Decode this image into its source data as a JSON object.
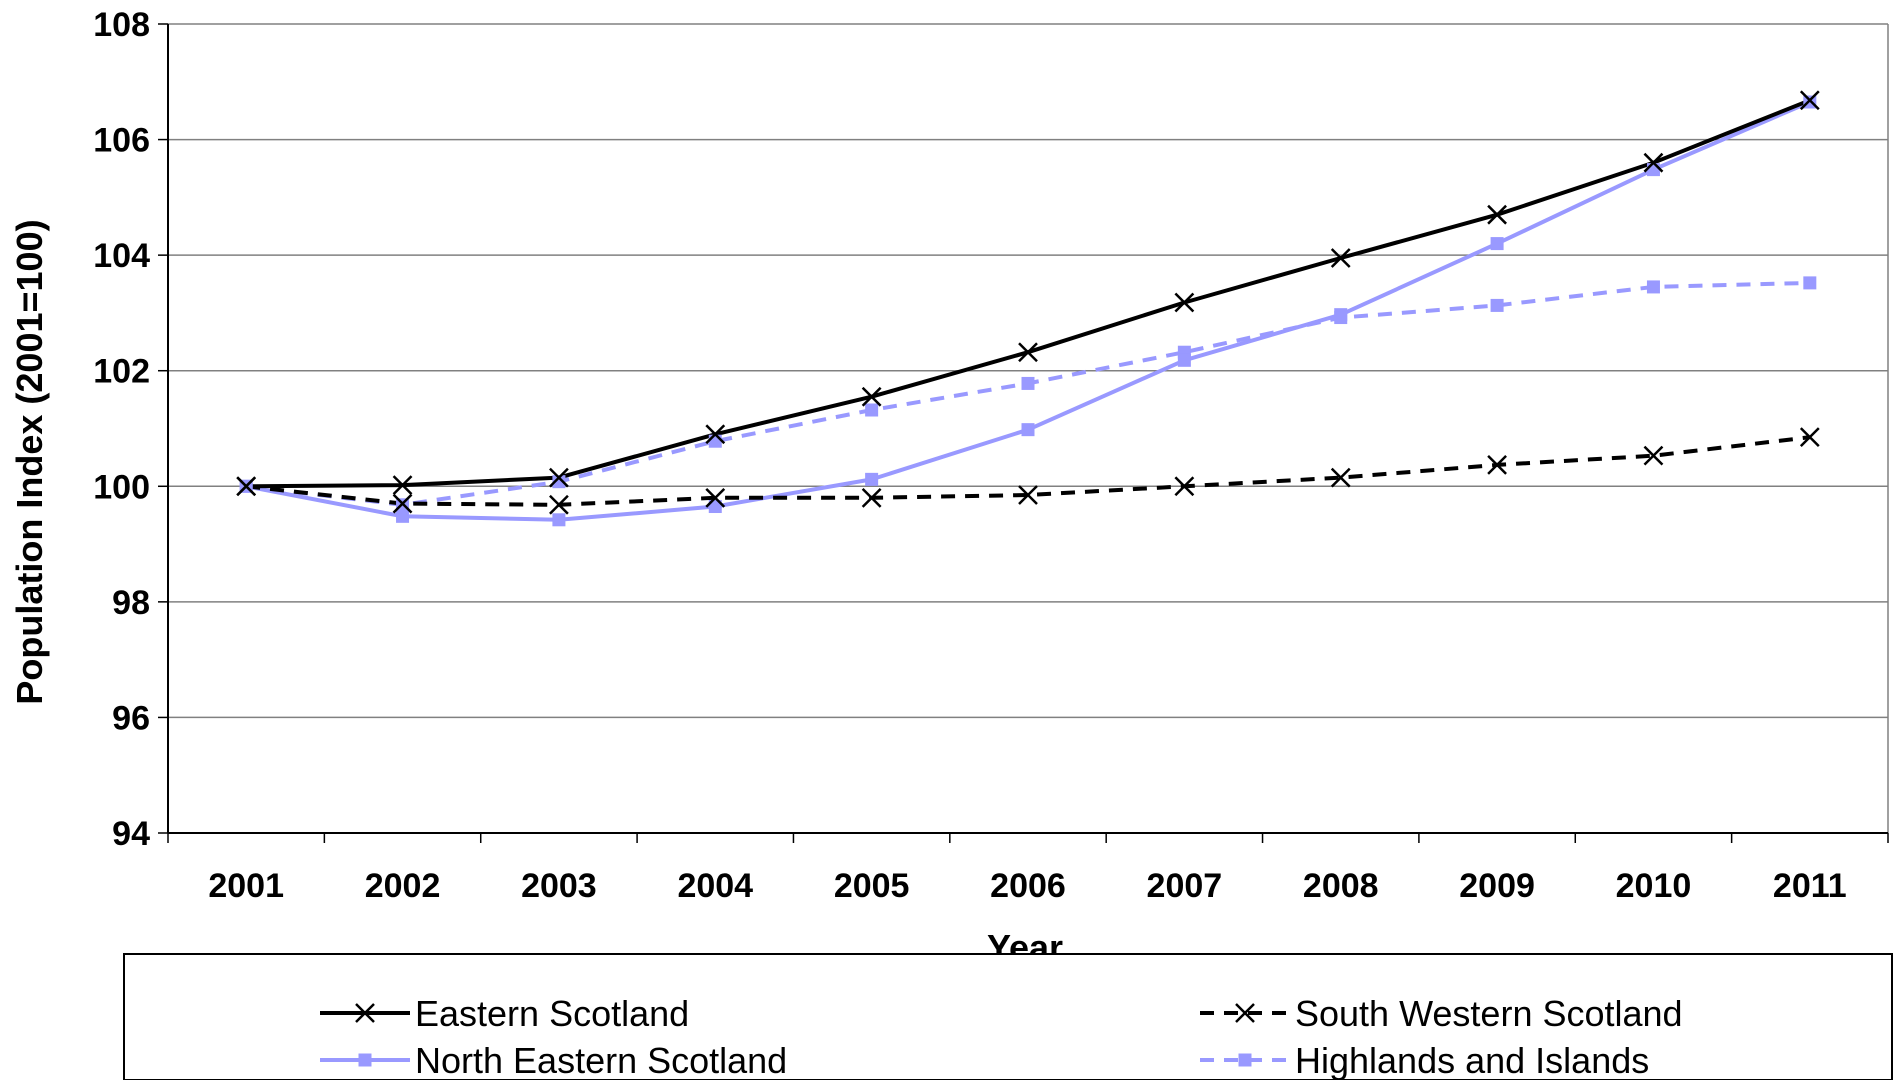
{
  "chart_data": {
    "type": "line",
    "title": "",
    "xlabel": "Year",
    "ylabel": "Population Index (2001=100)",
    "categories": [
      "2001",
      "2002",
      "2003",
      "2004",
      "2005",
      "2006",
      "2007",
      "2008",
      "2009",
      "2010",
      "2011"
    ],
    "ylim": [
      94,
      108
    ],
    "yticks": [
      94,
      96,
      98,
      100,
      102,
      104,
      106,
      108
    ],
    "grid": "horizontal",
    "legend_position": "bottom",
    "series": [
      {
        "name": "Eastern Scotland",
        "color": "#000000",
        "line_style": "solid",
        "marker": "x",
        "values": [
          100.0,
          100.02,
          100.15,
          100.9,
          101.55,
          102.32,
          103.18,
          103.95,
          104.7,
          105.6,
          106.68
        ]
      },
      {
        "name": "South Western Scotland",
        "color": "#000000",
        "line_style": "dashed",
        "marker": "x",
        "values": [
          100.0,
          99.7,
          99.68,
          99.8,
          99.8,
          99.85,
          100.0,
          100.15,
          100.37,
          100.53,
          100.85
        ]
      },
      {
        "name": "North Eastern Scotland",
        "color": "#9999ff",
        "line_style": "solid",
        "marker": "square",
        "values": [
          100.0,
          99.48,
          99.42,
          99.65,
          100.12,
          100.98,
          102.18,
          102.97,
          104.2,
          105.48,
          106.65
        ]
      },
      {
        "name": "Highlands and Islands",
        "color": "#9999ff",
        "line_style": "dashed",
        "marker": "square",
        "values": [
          100.0,
          99.68,
          100.08,
          100.78,
          101.32,
          101.78,
          102.32,
          102.92,
          103.13,
          103.45,
          103.52
        ]
      }
    ]
  }
}
